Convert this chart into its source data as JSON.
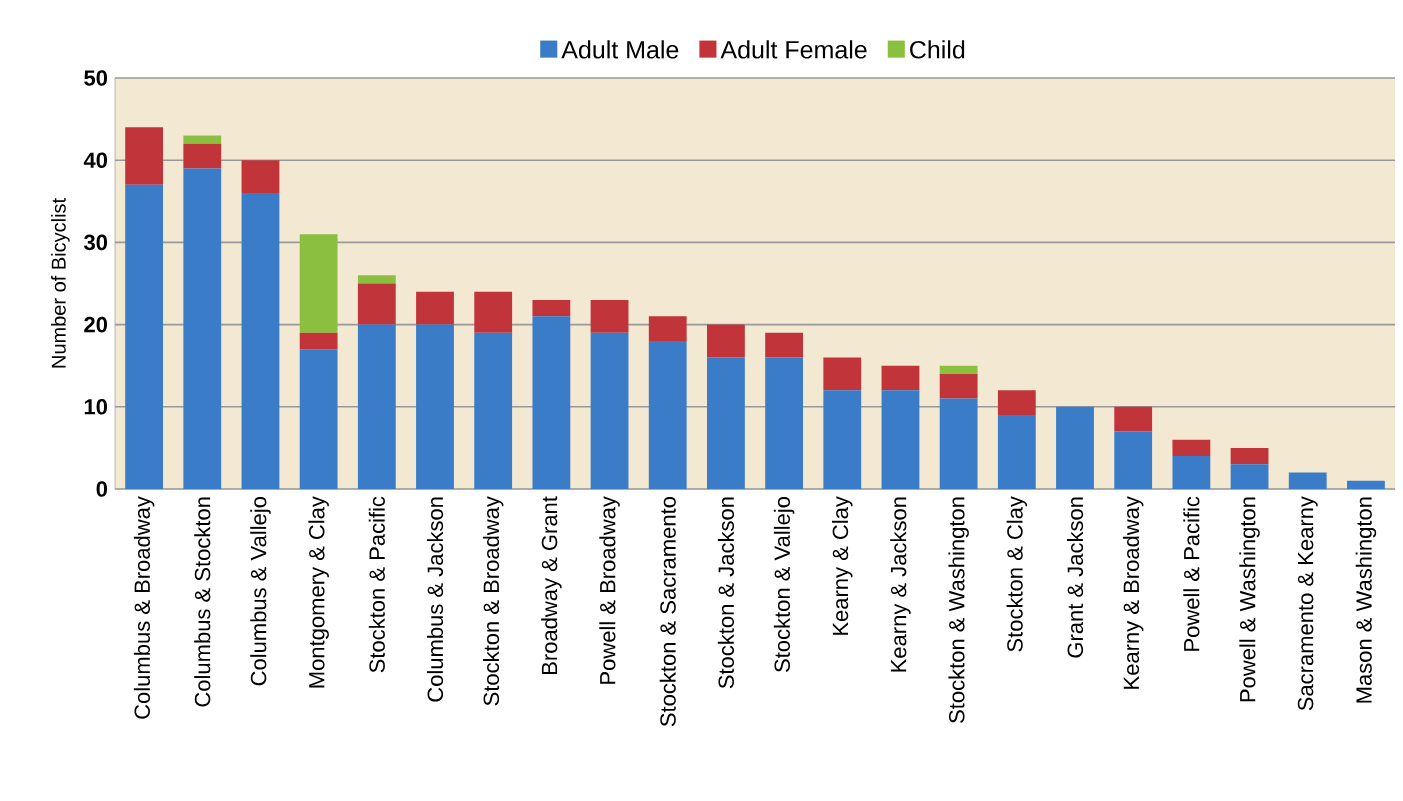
{
  "chart_data": {
    "type": "bar",
    "stacked": true,
    "ylabel": "Number of Bicyclist",
    "categories": [
      "Columbus & Broadway",
      "Columbus & Stockton",
      "Columbus & Vallejo",
      "Montgomery & Clay",
      "Stockton & Pacific",
      "Columbus & Jackson",
      "Stockton & Broadway",
      "Broadway & Grant",
      "Powell & Broadway",
      "Stockton & Sacramento",
      "Stockton & Jackson",
      "Stockton & Vallejo",
      "Kearny & Clay",
      "Kearny & Jackson",
      "Stockton & Washington",
      "Stockton & Clay",
      "Grant & Jackson",
      "Kearny & Broadway",
      "Powell & Pacific",
      "Powell & Washington",
      "Sacramento & Kearny",
      "Mason & Washington"
    ],
    "series": [
      {
        "name": "Adult Male",
        "color": "#3a7cc8",
        "values": [
          37,
          39,
          36,
          17,
          20,
          20,
          19,
          21,
          19,
          18,
          16,
          16,
          12,
          12,
          11,
          9,
          10,
          7,
          4,
          3,
          2,
          1
        ]
      },
      {
        "name": "Adult Female",
        "color": "#c0343a",
        "values": [
          7,
          3,
          4,
          2,
          5,
          4,
          5,
          2,
          4,
          3,
          4,
          3,
          4,
          3,
          3,
          3,
          0,
          3,
          2,
          2,
          0,
          0
        ]
      },
      {
        "name": "Child",
        "color": "#8bbf3f",
        "values": [
          0,
          1,
          0,
          12,
          1,
          0,
          0,
          0,
          0,
          0,
          0,
          0,
          0,
          0,
          1,
          0,
          0,
          0,
          0,
          0,
          0,
          0
        ]
      }
    ],
    "ylim": [
      0,
      50
    ],
    "yticks": [
      0,
      10,
      20,
      30,
      40,
      50
    ],
    "grid": "y",
    "legend": "top"
  }
}
